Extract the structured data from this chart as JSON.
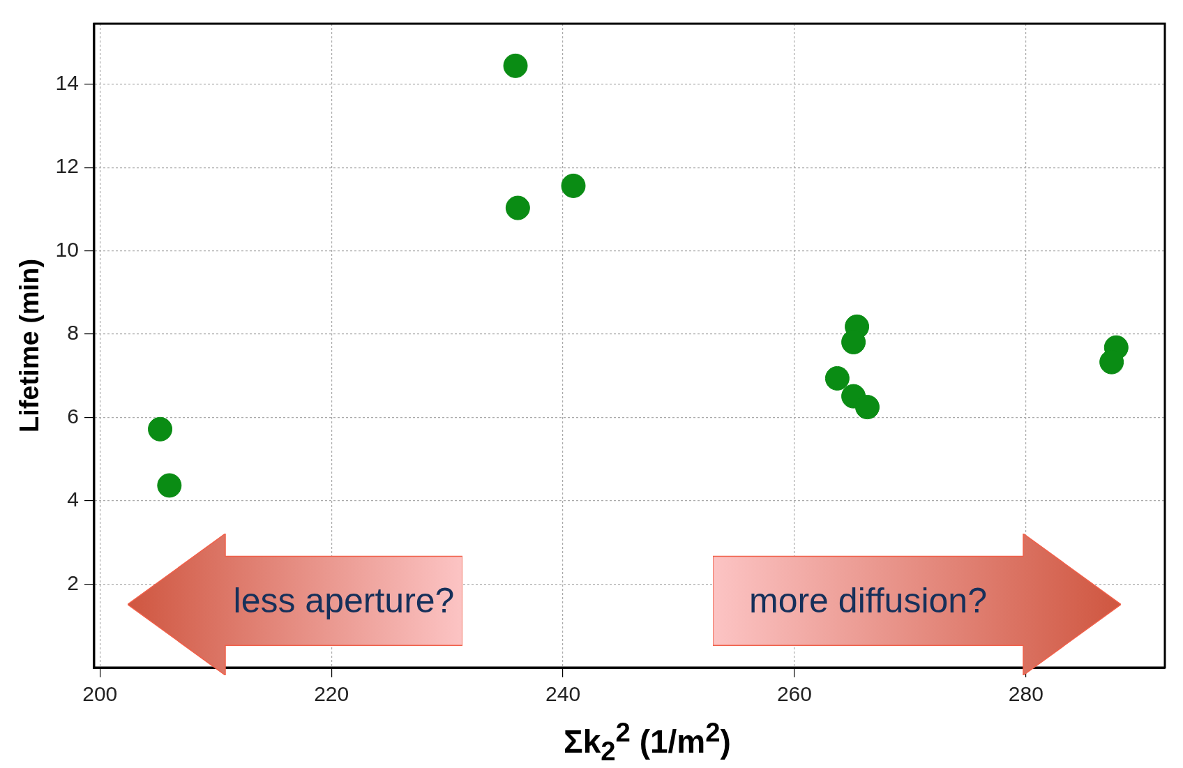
{
  "chart_data": {
    "type": "scatter",
    "xlabel": "Σk$_{2}$$^{2}$ (1/m$^{2}$)",
    "ylabel": "Lifetime (min)",
    "xlim": [
      199.5,
      292
    ],
    "xticks": [
      200,
      220,
      240,
      260,
      280
    ],
    "ylim": [
      0,
      15.45
    ],
    "yticks": [
      2,
      4,
      6,
      8,
      10,
      12,
      14
    ],
    "grid": true,
    "marker": "circle",
    "series": [
      {
        "color": "#0a8c14",
        "x": [
          205.2,
          206.0,
          235.9,
          236.1,
          240.9,
          265.4,
          265.1,
          263.7,
          265.1,
          266.3,
          287.8,
          287.4
        ],
        "values": [
          5.72,
          4.37,
          14.44,
          11.03,
          11.56,
          8.18,
          7.81,
          6.94,
          6.51,
          6.25,
          7.68,
          7.33
        ]
      }
    ],
    "annotations": [
      "less aperture?",
      "more diffusion?"
    ]
  }
}
